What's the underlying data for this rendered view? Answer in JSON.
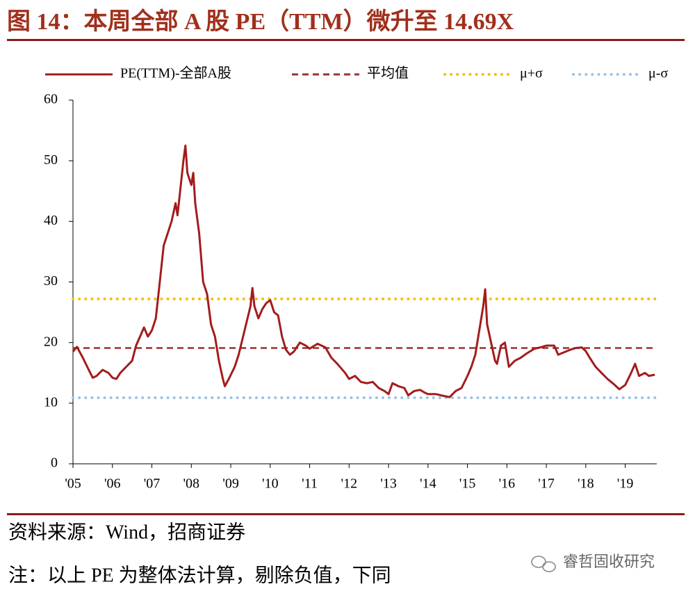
{
  "chart_data": {
    "type": "line",
    "title": "图 14：本周全部 A 股 PE（TTM）微升至 14.69X",
    "source": "资料来源：Wind，招商证券",
    "note": "注：以上 PE 为整体法计算，剔除负值，下同",
    "watermark": "睿哲固收研究",
    "xlim": [
      2005,
      2019.8
    ],
    "xticks": [
      {
        "value": 2005,
        "label": "'05"
      },
      {
        "value": 2006,
        "label": "'06"
      },
      {
        "value": 2007,
        "label": "'07"
      },
      {
        "value": 2008,
        "label": "'08"
      },
      {
        "value": 2009,
        "label": "'09"
      },
      {
        "value": 2010,
        "label": "'10"
      },
      {
        "value": 2011,
        "label": "'11"
      },
      {
        "value": 2012,
        "label": "'12"
      },
      {
        "value": 2013,
        "label": "'13"
      },
      {
        "value": 2014,
        "label": "'14"
      },
      {
        "value": 2015,
        "label": "'15"
      },
      {
        "value": 2016,
        "label": "'16"
      },
      {
        "value": 2017,
        "label": "'17"
      },
      {
        "value": 2018,
        "label": "'18"
      },
      {
        "value": 2019,
        "label": "'19"
      }
    ],
    "ylim": [
      0,
      60
    ],
    "yticks": [
      0,
      10,
      20,
      30,
      40,
      50,
      60
    ],
    "legend": "top",
    "series": [
      {
        "name": "PE(TTM)-全部A股",
        "color": "#a31c1c",
        "x": [
          2005.0,
          2005.1,
          2005.25,
          2005.4,
          2005.5,
          2005.6,
          2005.75,
          2005.9,
          2006.0,
          2006.1,
          2006.2,
          2006.35,
          2006.5,
          2006.6,
          2006.7,
          2006.8,
          2006.9,
          2007.0,
          2007.1,
          2007.2,
          2007.3,
          2007.4,
          2007.5,
          2007.6,
          2007.65,
          2007.75,
          2007.8,
          2007.85,
          2007.9,
          2008.0,
          2008.05,
          2008.1,
          2008.2,
          2008.3,
          2008.4,
          2008.5,
          2008.6,
          2008.7,
          2008.8,
          2008.85,
          2008.95,
          2009.1,
          2009.2,
          2009.35,
          2009.5,
          2009.55,
          2009.6,
          2009.7,
          2009.8,
          2009.9,
          2010.0,
          2010.1,
          2010.2,
          2010.3,
          2010.4,
          2010.5,
          2010.6,
          2010.75,
          2010.9,
          2011.0,
          2011.2,
          2011.4,
          2011.55,
          2011.7,
          2011.9,
          2012.0,
          2012.15,
          2012.3,
          2012.45,
          2012.6,
          2012.75,
          2012.9,
          2013.0,
          2013.1,
          2013.25,
          2013.4,
          2013.5,
          2013.65,
          2013.8,
          2013.9,
          2014.0,
          2014.2,
          2014.4,
          2014.55,
          2014.7,
          2014.85,
          2015.0,
          2015.1,
          2015.2,
          2015.3,
          2015.4,
          2015.45,
          2015.5,
          2015.6,
          2015.7,
          2015.75,
          2015.85,
          2015.95,
          2016.05,
          2016.2,
          2016.35,
          2016.5,
          2016.7,
          2016.85,
          2017.0,
          2017.2,
          2017.3,
          2017.45,
          2017.6,
          2017.75,
          2017.9,
          2018.0,
          2018.1,
          2018.25,
          2018.4,
          2018.55,
          2018.7,
          2018.85,
          2019.0,
          2019.15,
          2019.25,
          2019.35,
          2019.5,
          2019.6,
          2019.75
        ],
        "values": [
          18.5,
          19.3,
          17.5,
          15.5,
          14.2,
          14.5,
          15.5,
          15.0,
          14.2,
          14.0,
          15.0,
          16.0,
          17.0,
          19.5,
          21,
          22.5,
          21.0,
          22.0,
          24,
          30,
          36,
          38,
          40,
          43,
          41,
          47,
          50,
          52.5,
          48,
          46,
          48,
          43,
          38,
          30,
          28,
          23,
          21,
          17,
          14,
          12.8,
          14,
          16,
          18,
          22,
          26,
          29,
          26,
          24,
          25.5,
          26.5,
          27,
          25,
          24.5,
          21,
          18.8,
          18.0,
          18.5,
          20,
          19.5,
          19.0,
          19.8,
          19.2,
          17.5,
          16.5,
          15,
          14,
          14.5,
          13.5,
          13.3,
          13.5,
          12.5,
          12,
          11.5,
          13.3,
          12.8,
          12.5,
          11.3,
          12,
          12.2,
          11.8,
          11.5,
          11.5,
          11.2,
          11.0,
          12,
          12.5,
          14.5,
          16,
          18,
          22,
          26,
          28.8,
          23,
          20,
          17,
          16.5,
          19.5,
          20,
          16,
          17,
          17.5,
          18.2,
          19,
          19.2,
          19.5,
          19.5,
          18,
          18.4,
          18.8,
          19.1,
          19.2,
          18.6,
          17.5,
          16,
          15,
          14,
          13.2,
          12.3,
          13,
          15,
          16.5,
          14.5,
          15,
          14.5,
          14.7
        ]
      }
    ],
    "reference_lines": [
      {
        "name": "平均值",
        "color": "#9c2f2f",
        "value": 19.1,
        "style": "dashed"
      },
      {
        "name": "μ+σ",
        "color": "#f5c000",
        "value": 27.2,
        "style": "dotted"
      },
      {
        "name": "μ-σ",
        "color": "#9cc4e6",
        "value": 10.9,
        "style": "dotted"
      }
    ]
  }
}
